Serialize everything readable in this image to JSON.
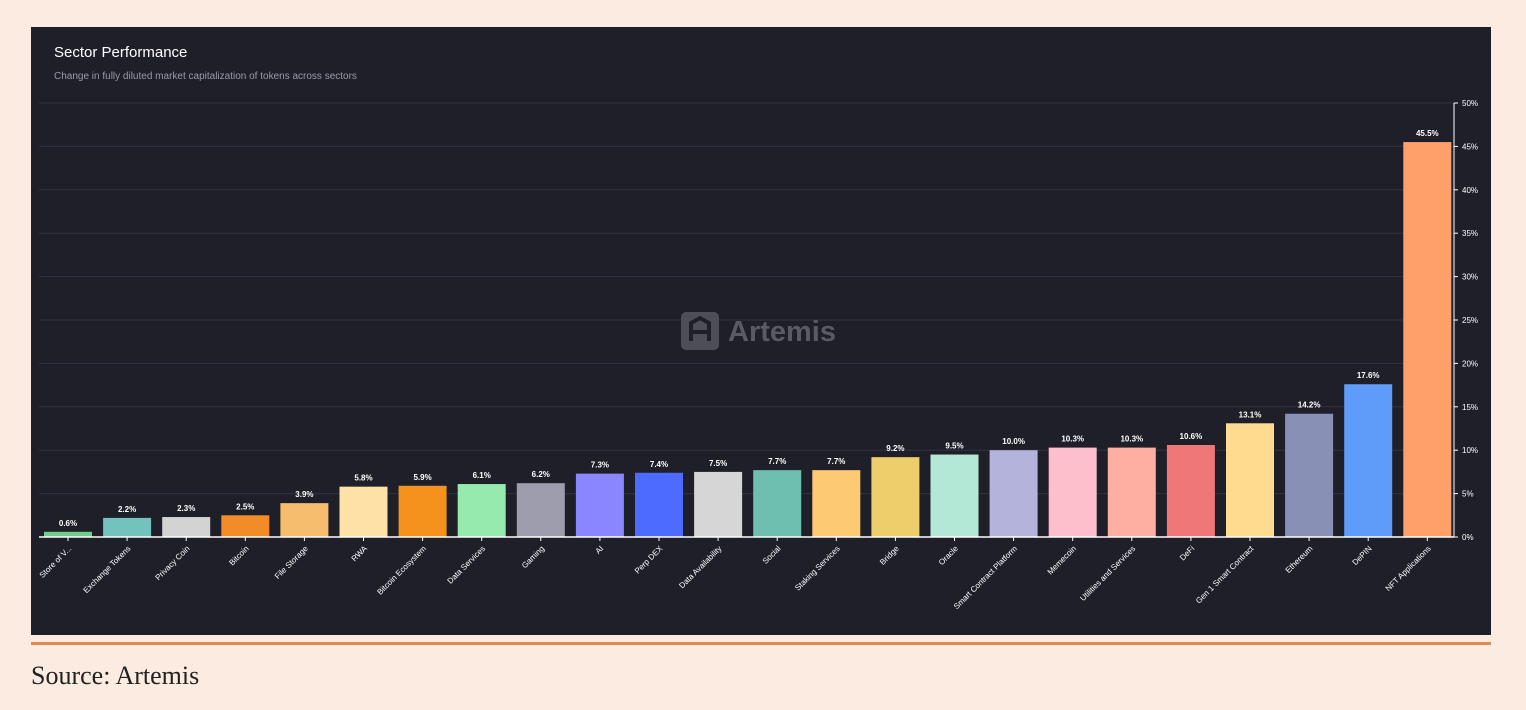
{
  "chart_data": {
    "type": "bar",
    "title": "Sector Performance",
    "subtitle": "Change in fully diluted market capitalization of tokens across sectors",
    "watermark": "Artemis",
    "categories": [
      "Store of V...",
      "Exchange Tokens",
      "Privacy Coin",
      "Bitcoin",
      "File Storage",
      "RWA",
      "Bitcoin Ecosystem",
      "Data Services",
      "Gaming",
      "AI",
      "Perp DEX",
      "Data Availability",
      "Social",
      "Staking Services",
      "Bridge",
      "Oracle",
      "Smart Contract Platform",
      "Memecoin",
      "Utilities and Services",
      "DeFi",
      "Gen 1 Smart Contract",
      "Ethereum",
      "DePIN",
      "NFT Applications"
    ],
    "values": [
      0.6,
      2.2,
      2.3,
      2.5,
      3.9,
      5.8,
      5.9,
      6.1,
      6.2,
      7.3,
      7.4,
      7.5,
      7.7,
      7.7,
      9.2,
      9.5,
      10.0,
      10.3,
      10.3,
      10.6,
      13.1,
      14.2,
      17.6,
      45.5
    ],
    "value_labels": [
      "0.6%",
      "2.2%",
      "2.3%",
      "2.5%",
      "3.9%",
      "5.8%",
      "5.9%",
      "6.1%",
      "6.2%",
      "7.3%",
      "7.4%",
      "7.5%",
      "7.7%",
      "7.7%",
      "9.2%",
      "9.5%",
      "10.0%",
      "10.3%",
      "10.3%",
      "10.6%",
      "13.1%",
      "14.2%",
      "17.6%",
      "45.5%"
    ],
    "colors": [
      "#6fcf8a",
      "#73c2bb",
      "#d3d3d3",
      "#f28c28",
      "#f5bd6c",
      "#fde1a6",
      "#f5921e",
      "#96eaae",
      "#9d9dae",
      "#8a86ff",
      "#4d6cff",
      "#d6d6d6",
      "#6fbfb1",
      "#fdc972",
      "#edce6a",
      "#b4e8d6",
      "#b3b3dc",
      "#fdbfcb",
      "#ffaea2",
      "#ef7777",
      "#fedb8e",
      "#8990b6",
      "#5f9cf9",
      "#ffa06b"
    ],
    "ylim": [
      0,
      50
    ],
    "yticks": [
      "0%",
      "5%",
      "10%",
      "15%",
      "20%",
      "25%",
      "30%",
      "35%",
      "40%",
      "45%",
      "50%"
    ],
    "ytick_values": [
      0,
      5,
      10,
      15,
      20,
      25,
      30,
      35,
      40,
      45,
      50
    ],
    "grid": true,
    "y_axis_side": "right"
  },
  "footer": {
    "source": "Source: Artemis"
  }
}
